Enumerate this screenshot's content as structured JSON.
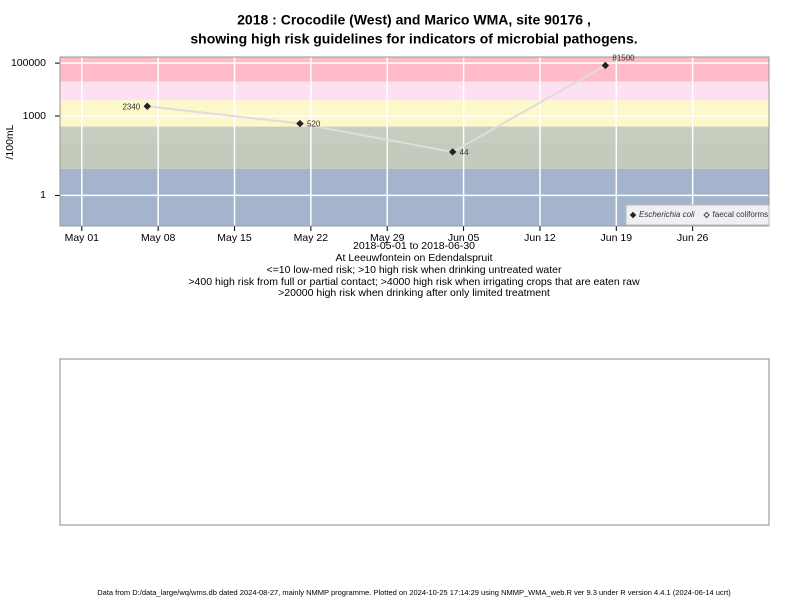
{
  "chart_data": {
    "type": "line",
    "title": [
      "2018 : Crocodile (West) and Marico WMA, site 90176 ,",
      "showing high risk guidelines for indicators of microbial pathogens."
    ],
    "y_label": "/100mL",
    "subtitle": [
      "2018-05-01 to 2018-06-30",
      "At Leeuwfontein on Edendalspruit",
      "<=10 low-med risk; >10 high risk when drinking untreated water",
      ">400 high risk from full or partial contact; >4000 high risk when irrigating crops that are eaten raw",
      ">20000 high risk when drinking after only limited treatment"
    ],
    "footer": "Data from D:/data_large/wq/wms.db dated 2024-08-27, mainly NMMP programme. Plotted on 2024-10-25 17:14:29 using NMMP_WMA_web.R ver 9.3 under R version 4.4.1 (2024-06-14 ucrt)",
    "log_y": true,
    "grid": true,
    "legend_position": "bottom-right",
    "ylim": [
      0.07,
      170000
    ],
    "yticks": [
      1,
      1000,
      100000
    ],
    "xlim": [
      "2018-04-29",
      "2018-07-03"
    ],
    "xticks": [
      {
        "value": "2018-05-01",
        "label": "May 01"
      },
      {
        "value": "2018-05-08",
        "label": "May 08"
      },
      {
        "value": "2018-05-15",
        "label": "May 15"
      },
      {
        "value": "2018-05-22",
        "label": "May 22"
      },
      {
        "value": "2018-05-29",
        "label": "May 29"
      },
      {
        "value": "2018-06-05",
        "label": "Jun 05"
      },
      {
        "value": "2018-06-12",
        "label": "Jun 12"
      },
      {
        "value": "2018-06-19",
        "label": "Jun 19"
      },
      {
        "value": "2018-06-26",
        "label": "Jun 26"
      }
    ],
    "bands": [
      {
        "range": [
          0.07,
          10
        ],
        "color": "#a3b4cc"
      },
      {
        "range": [
          10,
          100
        ],
        "color": "#c4cbbd"
      },
      {
        "range": [
          100,
          400
        ],
        "color": "#c7cdbf"
      },
      {
        "range": [
          400,
          4000
        ],
        "color": "#fdf7cc"
      },
      {
        "range": [
          4000,
          20000
        ],
        "color": "#fde0f2"
      },
      {
        "range": [
          20000,
          170000
        ],
        "color": "#ffbcc8"
      }
    ],
    "x": [
      "2018-05-07",
      "2018-05-21",
      "2018-06-04",
      "2018-06-18"
    ],
    "series": [
      {
        "name": "Escherichia coli",
        "color": "#222222",
        "line_color": "#dddddd",
        "marker": "filled",
        "values": [
          2340,
          520,
          44,
          81500
        ]
      },
      {
        "name": "faecal coliforms",
        "color": "#444444",
        "line_color": "#dddddd",
        "marker": "open",
        "values": [
          null,
          null,
          null,
          null
        ]
      }
    ]
  }
}
